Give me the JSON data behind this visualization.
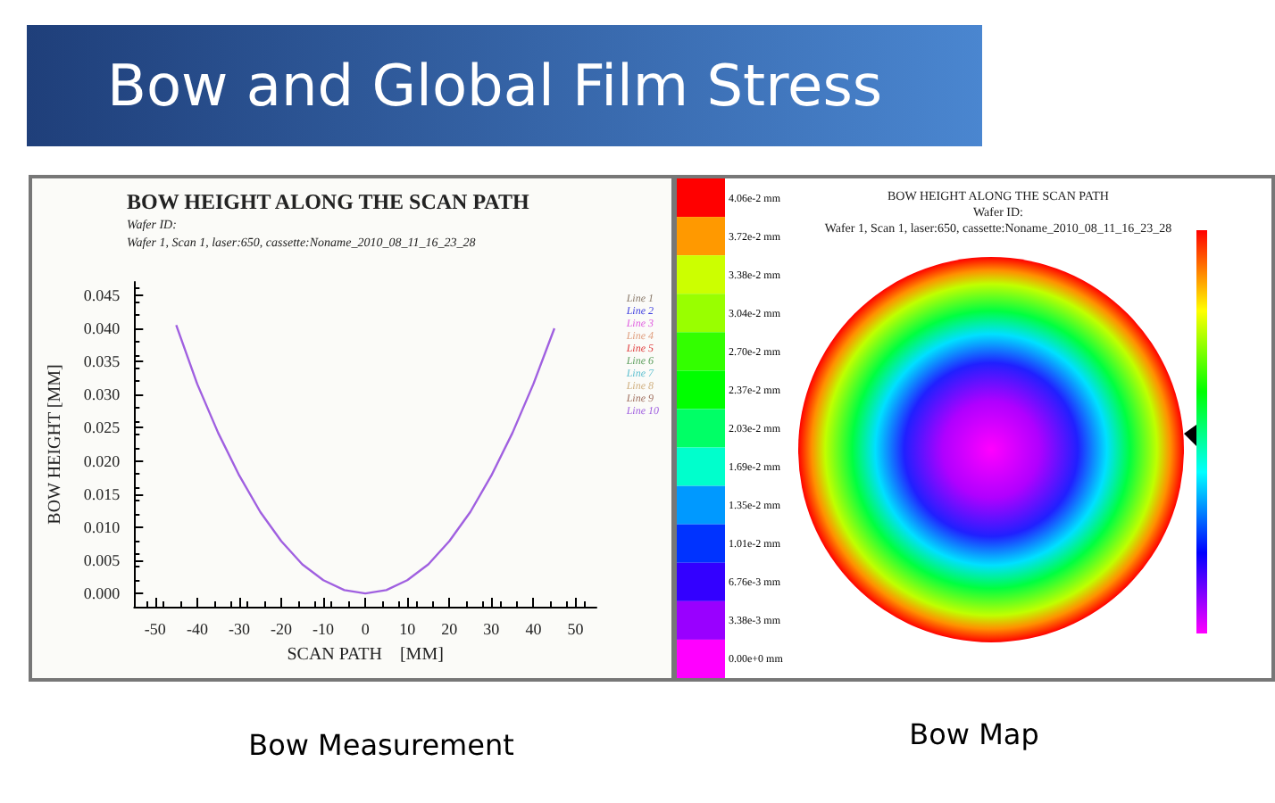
{
  "chart_data": [
    {
      "type": "line",
      "title": "BOW HEIGHT ALONG THE SCAN PATH",
      "subtitle": "Wafer ID:\nWafer 1, Scan 1, laser:650, cassette:Noname_2010_08_11_16_23_28",
      "xlabel": "SCAN PATH    [MM]",
      "ylabel": "BOW HEIGHT [MM]",
      "annotations": [
        "Bow and Global Film Stress",
        "Bow Measurement"
      ],
      "x": [
        -45,
        -40,
        -35,
        -30,
        -25,
        -20,
        -15,
        -10,
        -5,
        0,
        5,
        10,
        15,
        20,
        25,
        30,
        35,
        40,
        45
      ],
      "series": [
        {
          "name": "Line 1",
          "color": "#8a7a6a",
          "values": [
            null,
            null,
            null,
            null,
            null,
            null,
            null,
            null,
            null,
            null,
            null,
            null,
            null,
            null,
            null,
            null,
            null,
            null,
            null
          ]
        },
        {
          "name": "Line 2",
          "color": "#4040e0",
          "values": [
            null,
            null,
            null,
            null,
            null,
            null,
            null,
            null,
            null,
            null,
            null,
            null,
            null,
            null,
            null,
            null,
            null,
            null,
            null
          ]
        },
        {
          "name": "Line 3",
          "color": "#e060e0",
          "values": [
            null,
            null,
            null,
            null,
            null,
            null,
            null,
            null,
            null,
            null,
            null,
            null,
            null,
            null,
            null,
            null,
            null,
            null,
            null
          ]
        },
        {
          "name": "Line 4",
          "color": "#e0a080",
          "values": [
            null,
            null,
            null,
            null,
            null,
            null,
            null,
            null,
            null,
            null,
            null,
            null,
            null,
            null,
            null,
            null,
            null,
            null,
            null
          ]
        },
        {
          "name": "Line 5",
          "color": "#e04040",
          "values": [
            null,
            null,
            null,
            null,
            null,
            null,
            null,
            null,
            null,
            null,
            null,
            null,
            null,
            null,
            null,
            null,
            null,
            null,
            null
          ]
        },
        {
          "name": "Line 6",
          "color": "#60a060",
          "values": [
            null,
            null,
            null,
            null,
            null,
            null,
            null,
            null,
            null,
            null,
            null,
            null,
            null,
            null,
            null,
            null,
            null,
            null,
            null
          ]
        },
        {
          "name": "Line 7",
          "color": "#60c0d0",
          "values": [
            null,
            null,
            null,
            null,
            null,
            null,
            null,
            null,
            null,
            null,
            null,
            null,
            null,
            null,
            null,
            null,
            null,
            null,
            null
          ]
        },
        {
          "name": "Line 8",
          "color": "#d0b080",
          "values": [
            null,
            null,
            null,
            null,
            null,
            null,
            null,
            null,
            null,
            null,
            null,
            null,
            null,
            null,
            null,
            null,
            null,
            null,
            null
          ]
        },
        {
          "name": "Line 9",
          "color": "#a07060",
          "values": [
            null,
            null,
            null,
            null,
            null,
            null,
            null,
            null,
            null,
            null,
            null,
            null,
            null,
            null,
            null,
            null,
            null,
            null,
            null
          ]
        },
        {
          "name": "Line 10",
          "color": "#a060e0",
          "values": [
            0.0405,
            0.0316,
            0.0242,
            0.0178,
            0.0123,
            0.0079,
            0.0044,
            0.002,
            0.0005,
            0.0,
            0.0005,
            0.002,
            0.0044,
            0.0079,
            0.0123,
            0.0178,
            0.0242,
            0.0316,
            0.04
          ]
        }
      ],
      "xlim": [
        -55,
        55
      ],
      "xticks": [
        -50,
        -40,
        -30,
        -20,
        -10,
        0,
        10,
        20,
        30,
        40,
        50
      ],
      "ylim": [
        -0.002,
        0.047
      ],
      "yticks": [
        {
          "value": 0,
          "label": "0.000"
        },
        0.005,
        {
          "value": 0.01,
          "label": "0.010"
        },
        0.015,
        {
          "value": 0.02,
          "label": "0.020"
        },
        0.025,
        {
          "value": 0.03,
          "label": "0.030"
        },
        0.035,
        {
          "value": 0.04,
          "label": "0.040"
        },
        0.045
      ],
      "legend": "right"
    },
    {
      "type": "other",
      "title": "BOW HEIGHT ALONG THE SCAN PATH",
      "subtitle": "Wafer ID:\nWafer 1, Scan 1, laser:650, cassette:Noname_2010_08_11_16_23_28",
      "annotations": [
        "Bow Map",
        "4.06e-2 mm",
        "3.72e-2 mm",
        "3.38e-2 mm",
        "3.04e-2 mm",
        "2.70e-2 mm",
        "2.37e-2 mm",
        "2.03e-2 mm",
        "1.69e-2 mm",
        "1.35e-2 mm",
        "1.01e-2 mm",
        "6.76e-3 mm",
        "3.38e-3 mm",
        "0.00e+0 mm"
      ],
      "colors": [
        "#ff0000",
        "#ff9900",
        "#ccff00",
        "#99ff00",
        "#33ff00",
        "#00ff00",
        "#00ff66",
        "#00ffcc",
        "#0099ff",
        "#0033ff",
        "#3300ff",
        "#9900ff",
        "#ff00ff"
      ]
    }
  ]
}
